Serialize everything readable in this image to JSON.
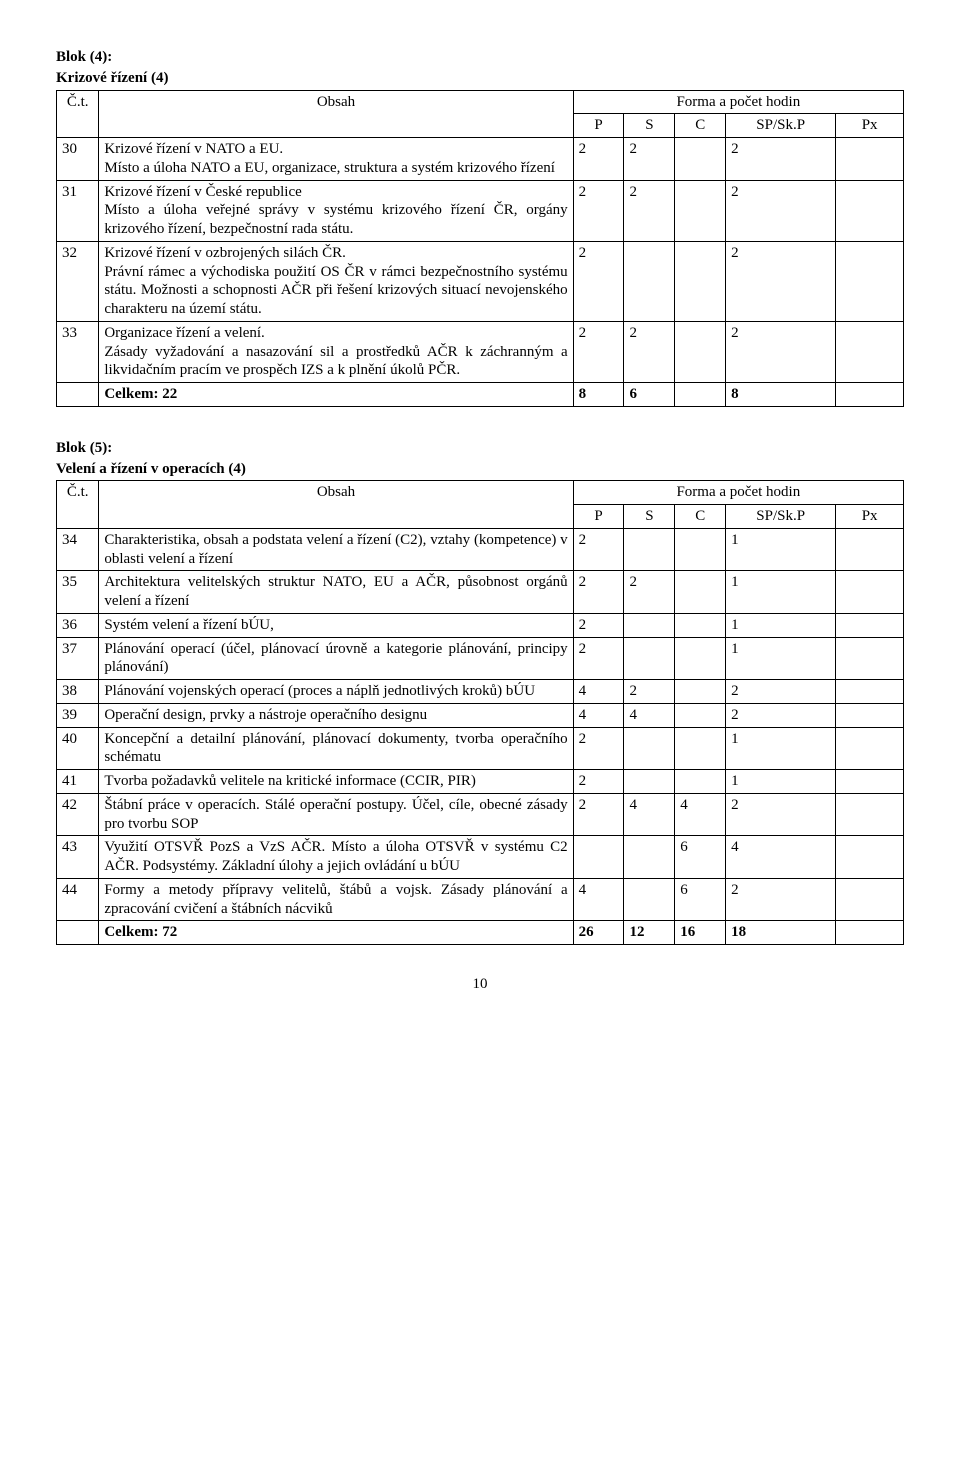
{
  "block4": {
    "heading_line1": "Blok (4):",
    "heading_line2": "Krizové řízení (4)",
    "header": {
      "ct": "Č.t.",
      "obsah": "Obsah",
      "forma": "Forma a počet hodin",
      "p": "P",
      "s": "S",
      "c": "C",
      "sp": "SP/Sk.P",
      "px": "Px"
    },
    "rows": [
      {
        "num": "30",
        "desc": "Krizové řízení v NATO a EU.\nMísto a úloha NATO a EU, organizace, struktura a systém krizového řízení",
        "p": "2",
        "s": "2",
        "c": "",
        "sp": "2",
        "px": ""
      },
      {
        "num": "31",
        "desc": "Krizové řízení v České republice\nMísto a úloha veřejné správy v systému krizového řízení ČR, orgány krizového řízení, bezpečnostní rada státu.",
        "p": "2",
        "s": "2",
        "c": "",
        "sp": "2",
        "px": ""
      },
      {
        "num": "32",
        "desc": "Krizové řízení v ozbrojených silách ČR.\nPrávní rámec a východiska použití OS ČR v rámci bezpečnostního systému státu. Možnosti a schopnosti AČR při řešení krizových situací nevojenského charakteru na území státu.",
        "p": "2",
        "s": "",
        "c": "",
        "sp": "2",
        "px": ""
      },
      {
        "num": "33",
        "desc": "Organizace řízení a velení.\nZásady vyžadování a nasazování sil a prostředků AČR k záchranným a likvidačním pracím ve prospěch  IZS a k plnění úkolů PČR.",
        "p": "2",
        "s": "2",
        "c": "",
        "sp": "2",
        "px": ""
      }
    ],
    "totals": {
      "label": "Celkem:  22",
      "p": "8",
      "s": "6",
      "c": "",
      "sp": "8",
      "px": ""
    }
  },
  "block5": {
    "heading_line1": "Blok (5):",
    "heading_line2": "Velení a řízení v operacích (4)",
    "header": {
      "ct": "Č.t.",
      "obsah": "Obsah",
      "forma": "Forma a počet hodin",
      "p": "P",
      "s": "S",
      "c": "C",
      "sp": "SP/Sk.P",
      "px": "Px"
    },
    "rows": [
      {
        "num": "34",
        "desc": "Charakteristika, obsah a podstata velení a řízení (C2), vztahy (kompetence) v oblasti velení a řízení",
        "p": "2",
        "s": "",
        "c": "",
        "sp": "1",
        "px": ""
      },
      {
        "num": "35",
        "desc": "Architektura velitelských struktur NATO, EU a AČR, působnost orgánů velení a řízení",
        "p": "2",
        "s": "2",
        "c": "",
        "sp": "1",
        "px": ""
      },
      {
        "num": "36",
        "desc": "Systém velení a řízení bÚU,",
        "p": "2",
        "s": "",
        "c": "",
        "sp": "1",
        "px": ""
      },
      {
        "num": "37",
        "desc": "Plánování operací (účel, plánovací úrovně a kategorie plánování, principy plánování)",
        "p": "2",
        "s": "",
        "c": "",
        "sp": "1",
        "px": ""
      },
      {
        "num": "38",
        "desc": "Plánování vojenských operací (proces a náplň jednotlivých kroků) bÚU",
        "p": "4",
        "s": "2",
        "c": "",
        "sp": "2",
        "px": ""
      },
      {
        "num": "39",
        "desc": "Operační design, prvky a nástroje operačního designu",
        "p": "4",
        "s": "4",
        "c": "",
        "sp": "2",
        "px": ""
      },
      {
        "num": "40",
        "desc": "Koncepční a detailní plánování, plánovací dokumenty, tvorba operačního schématu",
        "p": "2",
        "s": "",
        "c": "",
        "sp": "1",
        "px": ""
      },
      {
        "num": "41",
        "desc": "Tvorba požadavků velitele na kritické informace (CCIR, PIR)",
        "p": "2",
        "s": "",
        "c": "",
        "sp": "1",
        "px": ""
      },
      {
        "num": "42",
        "desc": "Štábní práce v operacích. Stálé operační postupy. Účel, cíle, obecné zásady pro tvorbu SOP",
        "p": "2",
        "s": "4",
        "c": "4",
        "sp": "2",
        "px": ""
      },
      {
        "num": "43",
        "desc": "Využití OTSVŘ PozS a VzS AČR. Místo a úloha OTSVŘ v systému C2 AČR. Podsystémy. Základní úlohy a jejich ovládání u bÚU",
        "p": "",
        "s": "",
        "c": "6",
        "sp": "4",
        "px": ""
      },
      {
        "num": "44",
        "desc": "Formy a metody přípravy velitelů, štábů a vojsk. Zásady plánování a zpracování cvičení a štábních nácviků",
        "p": "4",
        "s": "",
        "c": "6",
        "sp": "2",
        "px": ""
      }
    ],
    "totals": {
      "label": "Celkem:  72",
      "p": "26",
      "s": "12",
      "c": "16",
      "sp": "18",
      "px": ""
    }
  },
  "page": {
    "number": "10"
  }
}
